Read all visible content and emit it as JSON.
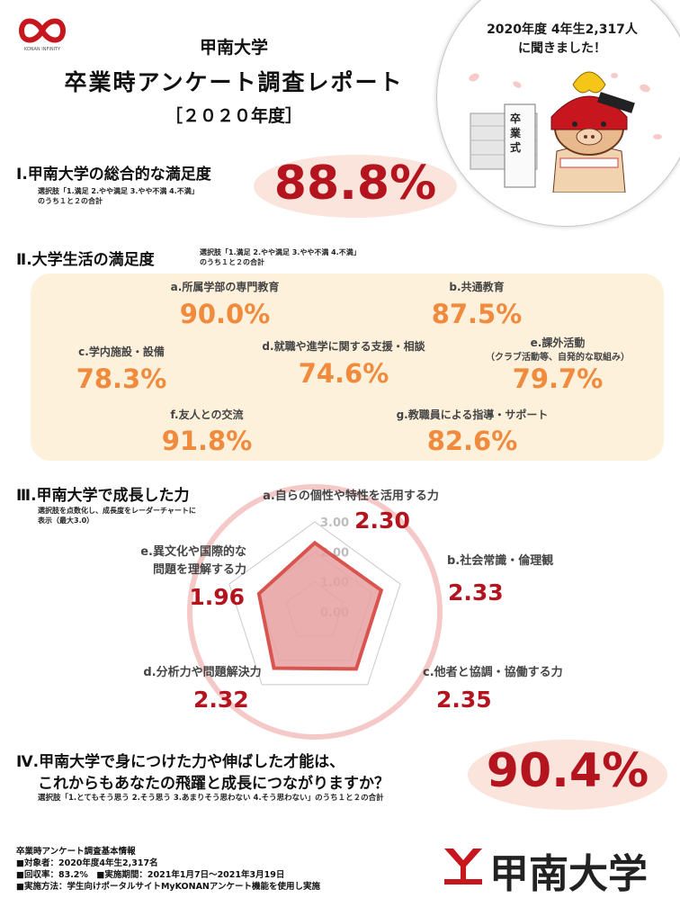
{
  "header": {
    "logo_text": "KONAN INFINITY",
    "university": "甲南大学",
    "report_title": "卒業時アンケート調査レポート",
    "year_label": "［２０２０年度］",
    "callout_line1": "2020年度 4年生2,317人",
    "callout_line2": "に聞きました！",
    "sign_text": "卒業式"
  },
  "section1": {
    "heading": "Ⅰ.甲南大学の総合的な満足度",
    "note_line1": "選択肢「1.満足 2.やや満足 3.やや不満 4.不満」",
    "note_line2": "のうち１と２の合計",
    "value": "88.8%"
  },
  "section2": {
    "heading": "Ⅱ.大学生活の満足度",
    "note_line1": "選択肢「1.満足 2.やや満足 3.やや不満 4.不満」",
    "note_line2": "のうち１と２の合計",
    "items": [
      {
        "label": "a.所属学部の専門教育",
        "value": "90.0%"
      },
      {
        "label": "b.共通教育",
        "value": "87.5%"
      },
      {
        "label": "c.学内施設・設備",
        "value": "78.3%"
      },
      {
        "label": "d.就職や進学に関する支援・相談",
        "value": "74.6%"
      },
      {
        "label": "e.課外活動",
        "sublabel": "（クラブ活動等、自発的な取組み）",
        "value": "79.7%"
      },
      {
        "label": "f.友人との交流",
        "value": "91.8%"
      },
      {
        "label": "g.教職員による指導・サポート",
        "value": "82.6%"
      }
    ]
  },
  "section3": {
    "heading": "Ⅲ.甲南大学で成長した力",
    "note_line1": "選択肢を点数化し、成長度をレーダーチャートに",
    "note_line2": "表示（最大3.0）",
    "labels": {
      "a": "a.自らの個性や特性を活用する力",
      "b": "b.社会常識・倫理観",
      "c": "c.他者と協調・協働する力",
      "d": "d.分析力や問題解決力",
      "e1": "e.異文化や国際的な",
      "e2": "問題を理解する力"
    },
    "values_text": {
      "a": "2.30",
      "b": "2.33",
      "c": "2.35",
      "d": "2.32",
      "e": "1.96"
    },
    "ticks": [
      "0.00",
      "1.00",
      "2.00",
      "3.00"
    ]
  },
  "chart_data": {
    "type": "radar",
    "categories": [
      "a.自らの個性や特性を活用する力",
      "b.社会常識・倫理観",
      "c.他者と協調・協働する力",
      "d.分析力や問題解決力",
      "e.異文化や国際的な問題を理解する力"
    ],
    "values": [
      2.3,
      2.33,
      2.35,
      2.32,
      1.96
    ],
    "ylim": [
      0,
      3
    ],
    "ticks": [
      0,
      1,
      2,
      3
    ],
    "fill_color": "#e8a0a0",
    "stroke_color": "#d9534f"
  },
  "section4": {
    "heading_line1": "Ⅳ.甲南大学で身につけた力や伸ばした才能は、",
    "heading_line2": "これからもあなたの飛躍と成長につながりますか？",
    "note": "選択肢「1.とてもそう思う 2.そう思う 3.あまりそう思わない 4.そう思わない」のうち１と２の合計",
    "value": "90.4%"
  },
  "footer": {
    "title": "卒業時アンケート調査基本情報",
    "line1": "■対象者：2020年度4年生2,317名",
    "line2": "■回収率：83.2%　■実施期間：2021年1月7日～2021年3月19日",
    "line3": "■実施方法：学生向けポータルサイトMyKONANアンケート機能を使用し実施",
    "brand": "甲南大学"
  },
  "colors": {
    "accent_red": "#b4141e",
    "orange": "#f08a3c",
    "panel_bg": "#fdf1dc",
    "pink_oval": "#fbe4dc"
  }
}
